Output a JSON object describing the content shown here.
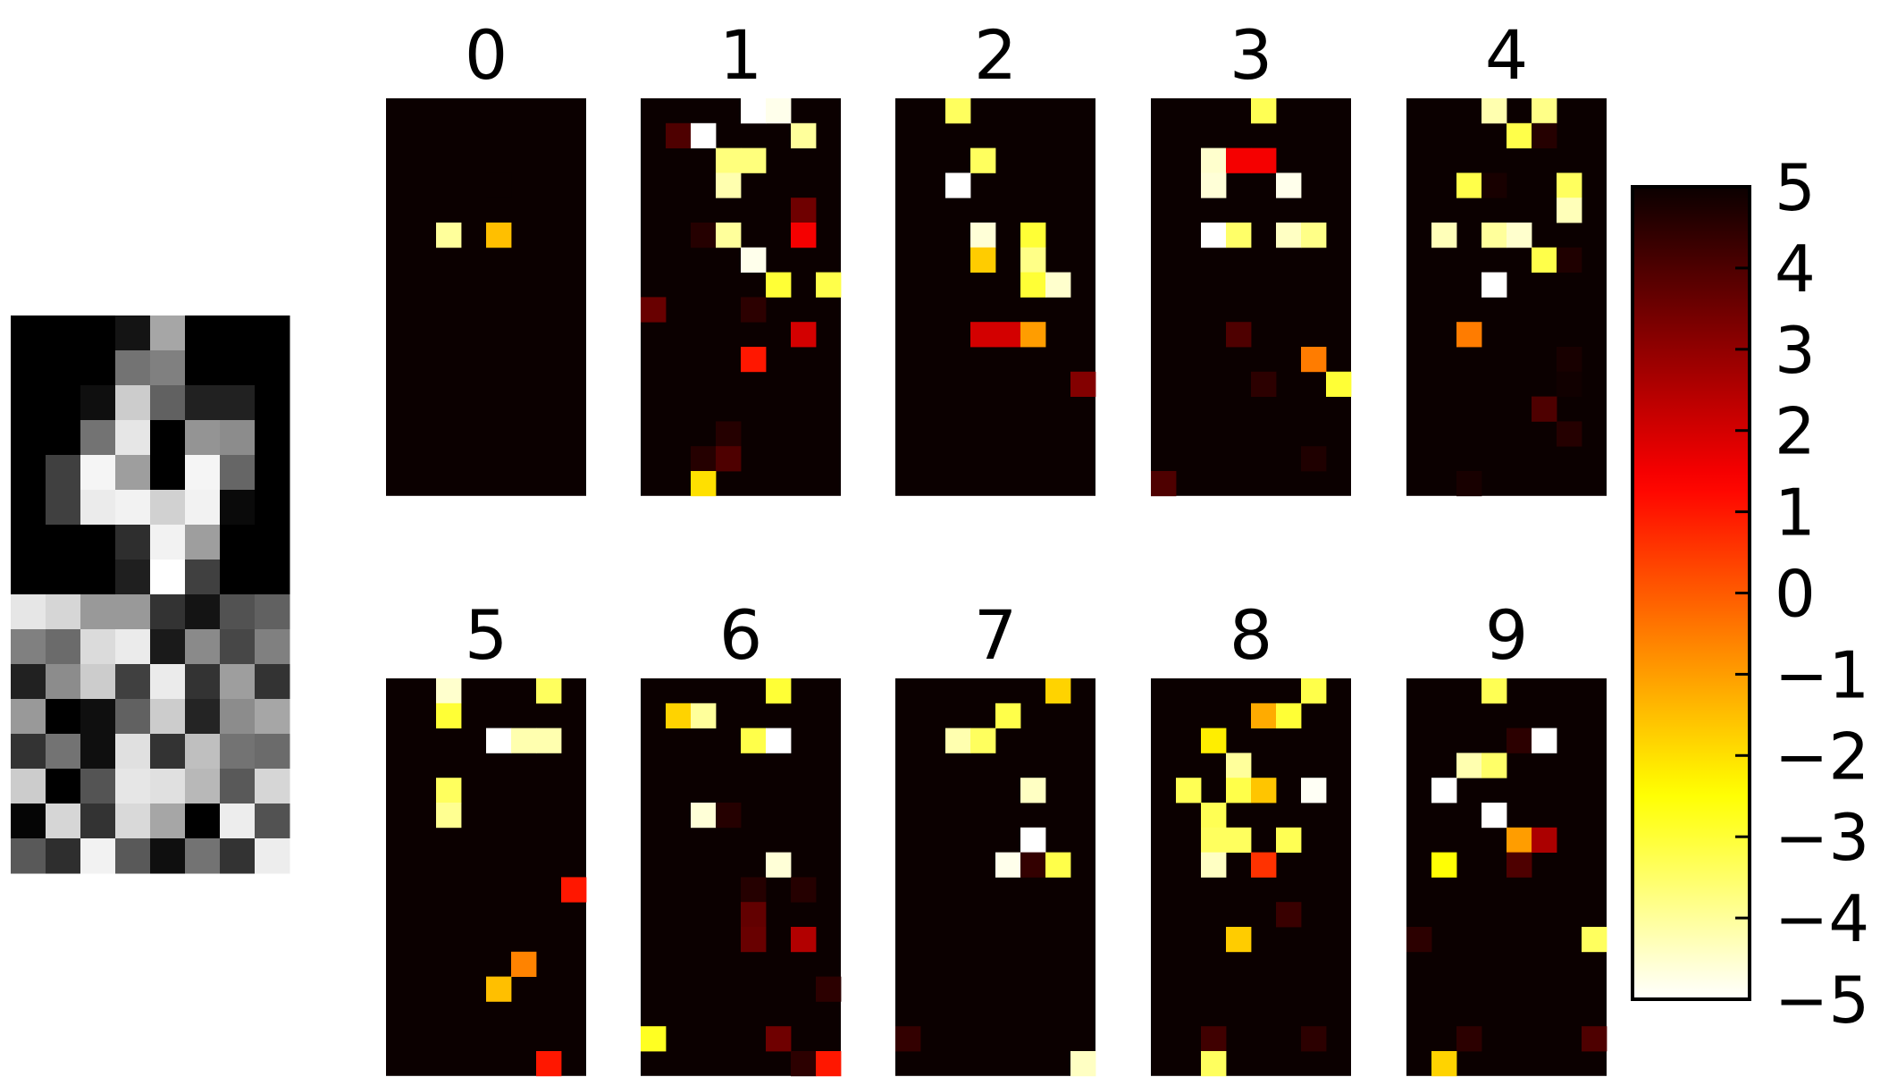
{
  "chart_data": {
    "type": "heatmap",
    "input_image": {
      "rows": 16,
      "cols": 8,
      "colormap": "gray",
      "values": [
        [
          0,
          0,
          0,
          0.08,
          0.65,
          0,
          0,
          0
        ],
        [
          0,
          0,
          0,
          0.45,
          0.5,
          0,
          0,
          0
        ],
        [
          0,
          0,
          0.06,
          0.8,
          0.38,
          0.13,
          0.13,
          0
        ],
        [
          0,
          0,
          0.45,
          0.9,
          0,
          0.58,
          0.55,
          0
        ],
        [
          0,
          0.25,
          0.96,
          0.62,
          0,
          0.96,
          0.4,
          0
        ],
        [
          0,
          0.25,
          0.92,
          0.95,
          0.82,
          0.95,
          0.04,
          0
        ],
        [
          0,
          0,
          0,
          0.18,
          0.95,
          0.62,
          0,
          0
        ],
        [
          0,
          0,
          0,
          0.12,
          1,
          0.25,
          0,
          0
        ],
        [
          0.9,
          0.84,
          0.6,
          0.6,
          0.2,
          0.08,
          0.32,
          0.38
        ],
        [
          0.5,
          0.42,
          0.86,
          0.92,
          0.1,
          0.54,
          0.28,
          0.5
        ],
        [
          0.13,
          0.55,
          0.8,
          0.25,
          0.92,
          0.2,
          0.62,
          0.2
        ],
        [
          0.6,
          0,
          0.06,
          0.38,
          0.8,
          0.14,
          0.55,
          0.65
        ],
        [
          0.2,
          0.45,
          0.06,
          0.88,
          0.2,
          0.75,
          0.45,
          0.42
        ],
        [
          0.8,
          0,
          0.33,
          0.9,
          0.88,
          0.72,
          0.35,
          0.84
        ],
        [
          0.02,
          0.84,
          0.2,
          0.85,
          0.65,
          0,
          0.93,
          0.32
        ],
        [
          0.35,
          0.18,
          0.95,
          0.35,
          0.06,
          0.45,
          0.2,
          0.93
        ]
      ]
    },
    "panels": [
      {
        "label": "0",
        "cells": [
          [
            3,
            4,
            5
          ],
          [
            5,
            2,
            -4
          ],
          [
            5,
            4,
            -1.5
          ]
        ]
      },
      {
        "label": "1",
        "cells": [
          [
            0,
            4,
            -5
          ],
          [
            0,
            5,
            -4.8
          ],
          [
            1,
            1,
            4
          ],
          [
            1,
            2,
            -5
          ],
          [
            1,
            6,
            -4
          ],
          [
            2,
            3,
            -3.7
          ],
          [
            2,
            4,
            -3.7
          ],
          [
            3,
            3,
            -4.2
          ],
          [
            4,
            6,
            3.5
          ],
          [
            5,
            2,
            4.6
          ],
          [
            5,
            3,
            -4
          ],
          [
            5,
            6,
            1.5
          ],
          [
            6,
            4,
            -4.8
          ],
          [
            7,
            5,
            -3
          ],
          [
            7,
            7,
            -3.2
          ],
          [
            8,
            0,
            3.6
          ],
          [
            8,
            4,
            4.5
          ],
          [
            9,
            6,
            2
          ],
          [
            10,
            4,
            1
          ],
          [
            13,
            3,
            4.6
          ],
          [
            14,
            2,
            4.6
          ],
          [
            14,
            3,
            4
          ],
          [
            15,
            2,
            -2
          ]
        ]
      },
      {
        "label": "2",
        "cells": [
          [
            0,
            2,
            -3.4
          ],
          [
            2,
            3,
            -3.4
          ],
          [
            3,
            2,
            -5
          ],
          [
            5,
            3,
            -4.6
          ],
          [
            5,
            5,
            -3
          ],
          [
            6,
            3,
            -1.7
          ],
          [
            6,
            5,
            -3.8
          ],
          [
            7,
            5,
            -3
          ],
          [
            7,
            6,
            -4.5
          ],
          [
            9,
            3,
            2
          ],
          [
            9,
            4,
            2
          ],
          [
            9,
            5,
            -1
          ],
          [
            11,
            7,
            3.2
          ]
        ]
      },
      {
        "label": "3",
        "cells": [
          [
            0,
            4,
            -3.3
          ],
          [
            2,
            2,
            -4.5
          ],
          [
            2,
            3,
            1.5
          ],
          [
            2,
            4,
            1.5
          ],
          [
            3,
            2,
            -4.6
          ],
          [
            3,
            5,
            -4.8
          ],
          [
            5,
            2,
            -5
          ],
          [
            5,
            3,
            -3.5
          ],
          [
            5,
            5,
            -4.4
          ],
          [
            5,
            6,
            -3.8
          ],
          [
            9,
            3,
            4
          ],
          [
            10,
            6,
            -0.5
          ],
          [
            11,
            4,
            4.5
          ],
          [
            11,
            7,
            -3
          ],
          [
            14,
            6,
            4.7
          ],
          [
            15,
            0,
            4
          ]
        ]
      },
      {
        "label": "4",
        "cells": [
          [
            0,
            3,
            -4.2
          ],
          [
            0,
            5,
            -3.8
          ],
          [
            1,
            4,
            -3.2
          ],
          [
            1,
            5,
            4.6
          ],
          [
            3,
            2,
            -3.2
          ],
          [
            3,
            3,
            4.8
          ],
          [
            3,
            6,
            -3.4
          ],
          [
            4,
            6,
            -4.3
          ],
          [
            5,
            1,
            -4.3
          ],
          [
            5,
            3,
            -4
          ],
          [
            5,
            4,
            -4.5
          ],
          [
            6,
            5,
            -3.2
          ],
          [
            6,
            6,
            4.7
          ],
          [
            7,
            3,
            -5
          ],
          [
            9,
            2,
            -0.5
          ],
          [
            10,
            6,
            4.8
          ],
          [
            11,
            6,
            4.9
          ],
          [
            12,
            5,
            4
          ],
          [
            13,
            6,
            4.6
          ],
          [
            15,
            2,
            4.8
          ]
        ]
      },
      {
        "label": "5",
        "cells": [
          [
            0,
            2,
            -4.5
          ],
          [
            0,
            6,
            -3.4
          ],
          [
            1,
            2,
            -3
          ],
          [
            2,
            4,
            -5
          ],
          [
            2,
            5,
            -4.2
          ],
          [
            2,
            6,
            -4.2
          ],
          [
            4,
            2,
            -3.4
          ],
          [
            5,
            2,
            -3.9
          ],
          [
            8,
            7,
            1
          ],
          [
            11,
            5,
            -0.6
          ],
          [
            12,
            4,
            -1.5
          ],
          [
            15,
            6,
            1
          ]
        ]
      },
      {
        "label": "6",
        "cells": [
          [
            0,
            5,
            -3
          ],
          [
            1,
            1,
            -1.8
          ],
          [
            1,
            2,
            -4
          ],
          [
            2,
            4,
            -3.2
          ],
          [
            2,
            5,
            -5
          ],
          [
            5,
            2,
            -4.6
          ],
          [
            5,
            3,
            4.6
          ],
          [
            7,
            5,
            -4.6
          ],
          [
            8,
            4,
            4.6
          ],
          [
            8,
            6,
            4.6
          ],
          [
            9,
            4,
            3.7
          ],
          [
            10,
            4,
            3.6
          ],
          [
            10,
            6,
            2.5
          ],
          [
            12,
            7,
            4.5
          ],
          [
            14,
            0,
            -2.8
          ],
          [
            14,
            5,
            3.5
          ],
          [
            15,
            6,
            4.5
          ],
          [
            15,
            7,
            1
          ]
        ]
      },
      {
        "label": "7",
        "cells": [
          [
            0,
            6,
            -1.8
          ],
          [
            1,
            4,
            -3.2
          ],
          [
            2,
            2,
            -4.2
          ],
          [
            2,
            3,
            -3.4
          ],
          [
            4,
            5,
            -4.4
          ],
          [
            6,
            5,
            -5
          ],
          [
            7,
            4,
            -4.8
          ],
          [
            7,
            5,
            4.4
          ],
          [
            7,
            6,
            -3.2
          ],
          [
            14,
            0,
            4.4
          ],
          [
            15,
            7,
            -4.4
          ]
        ]
      },
      {
        "label": "8",
        "cells": [
          [
            0,
            6,
            -3.2
          ],
          [
            1,
            4,
            -1.2
          ],
          [
            1,
            5,
            -3
          ],
          [
            2,
            2,
            -2.2
          ],
          [
            3,
            3,
            -4
          ],
          [
            4,
            1,
            -3.3
          ],
          [
            4,
            3,
            -3.2
          ],
          [
            4,
            4,
            -1.6
          ],
          [
            4,
            6,
            -4.9
          ],
          [
            5,
            2,
            -3.3
          ],
          [
            6,
            2,
            -3.4
          ],
          [
            6,
            3,
            -3.4
          ],
          [
            6,
            5,
            -3.3
          ],
          [
            7,
            2,
            -4.4
          ],
          [
            7,
            4,
            0.6
          ],
          [
            9,
            5,
            4.3
          ],
          [
            10,
            3,
            -1.7
          ],
          [
            14,
            2,
            4.2
          ],
          [
            14,
            6,
            4.5
          ],
          [
            15,
            2,
            -3.4
          ]
        ]
      },
      {
        "label": "9",
        "cells": [
          [
            0,
            3,
            -3.3
          ],
          [
            2,
            4,
            4.5
          ],
          [
            2,
            5,
            -5
          ],
          [
            3,
            2,
            -4.2
          ],
          [
            3,
            3,
            -3.5
          ],
          [
            4,
            1,
            -5
          ],
          [
            5,
            3,
            -5
          ],
          [
            6,
            4,
            -1
          ],
          [
            6,
            5,
            2.6
          ],
          [
            7,
            1,
            -2.5
          ],
          [
            7,
            4,
            4
          ],
          [
            10,
            0,
            4.5
          ],
          [
            10,
            7,
            -3.4
          ],
          [
            14,
            2,
            4.5
          ],
          [
            14,
            7,
            4
          ],
          [
            15,
            1,
            -1.8
          ]
        ]
      }
    ],
    "panel_grid": {
      "rows": 16,
      "cols": 8
    },
    "colormap": "hot_r",
    "colorbar": {
      "vmin": -5,
      "vmax": 5,
      "ticks": [
        5,
        4,
        3,
        2,
        1,
        0,
        -1,
        -2,
        -3,
        -4,
        -5
      ],
      "tick_labels": [
        "5",
        "4",
        "3",
        "2",
        "1",
        "0",
        "−1",
        "−2",
        "−3",
        "−4",
        "−5"
      ]
    },
    "background_value": 5
  }
}
